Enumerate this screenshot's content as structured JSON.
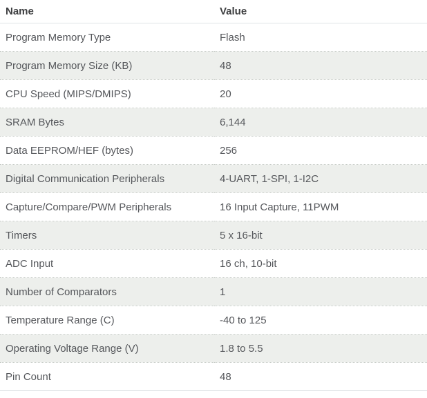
{
  "table": {
    "columns": [
      {
        "label": "Name"
      },
      {
        "label": "Value"
      }
    ],
    "rows": [
      {
        "name": "Program Memory Type",
        "value": "Flash"
      },
      {
        "name": "Program Memory Size (KB)",
        "value": "48"
      },
      {
        "name": "CPU Speed (MIPS/DMIPS)",
        "value": "20"
      },
      {
        "name": "SRAM Bytes",
        "value": "6,144"
      },
      {
        "name": "Data EEPROM/HEF (bytes)",
        "value": "256"
      },
      {
        "name": "Digital Communication Peripherals",
        "value": "4-UART, 1-SPI, 1-I2C"
      },
      {
        "name": "Capture/Compare/PWM Peripherals",
        "value": "16 Input Capture, 11PWM"
      },
      {
        "name": "Timers",
        "value": "5 x 16-bit"
      },
      {
        "name": "ADC Input",
        "value": "16 ch, 10-bit"
      },
      {
        "name": "Number of Comparators",
        "value": "1"
      },
      {
        "name": "Temperature Range (C)",
        "value": "-40 to 125"
      },
      {
        "name": "Operating Voltage Range (V)",
        "value": "1.8 to 5.5"
      },
      {
        "name": "Pin Count",
        "value": "48"
      }
    ]
  },
  "colors": {
    "row_alt_bg": "#edefec",
    "header_text": "#3d3e40",
    "cell_text": "#55575b",
    "row_separator": "#c6cbc6",
    "table_bottom_border": "#d8dde0",
    "page_bg": "#ffffff"
  }
}
